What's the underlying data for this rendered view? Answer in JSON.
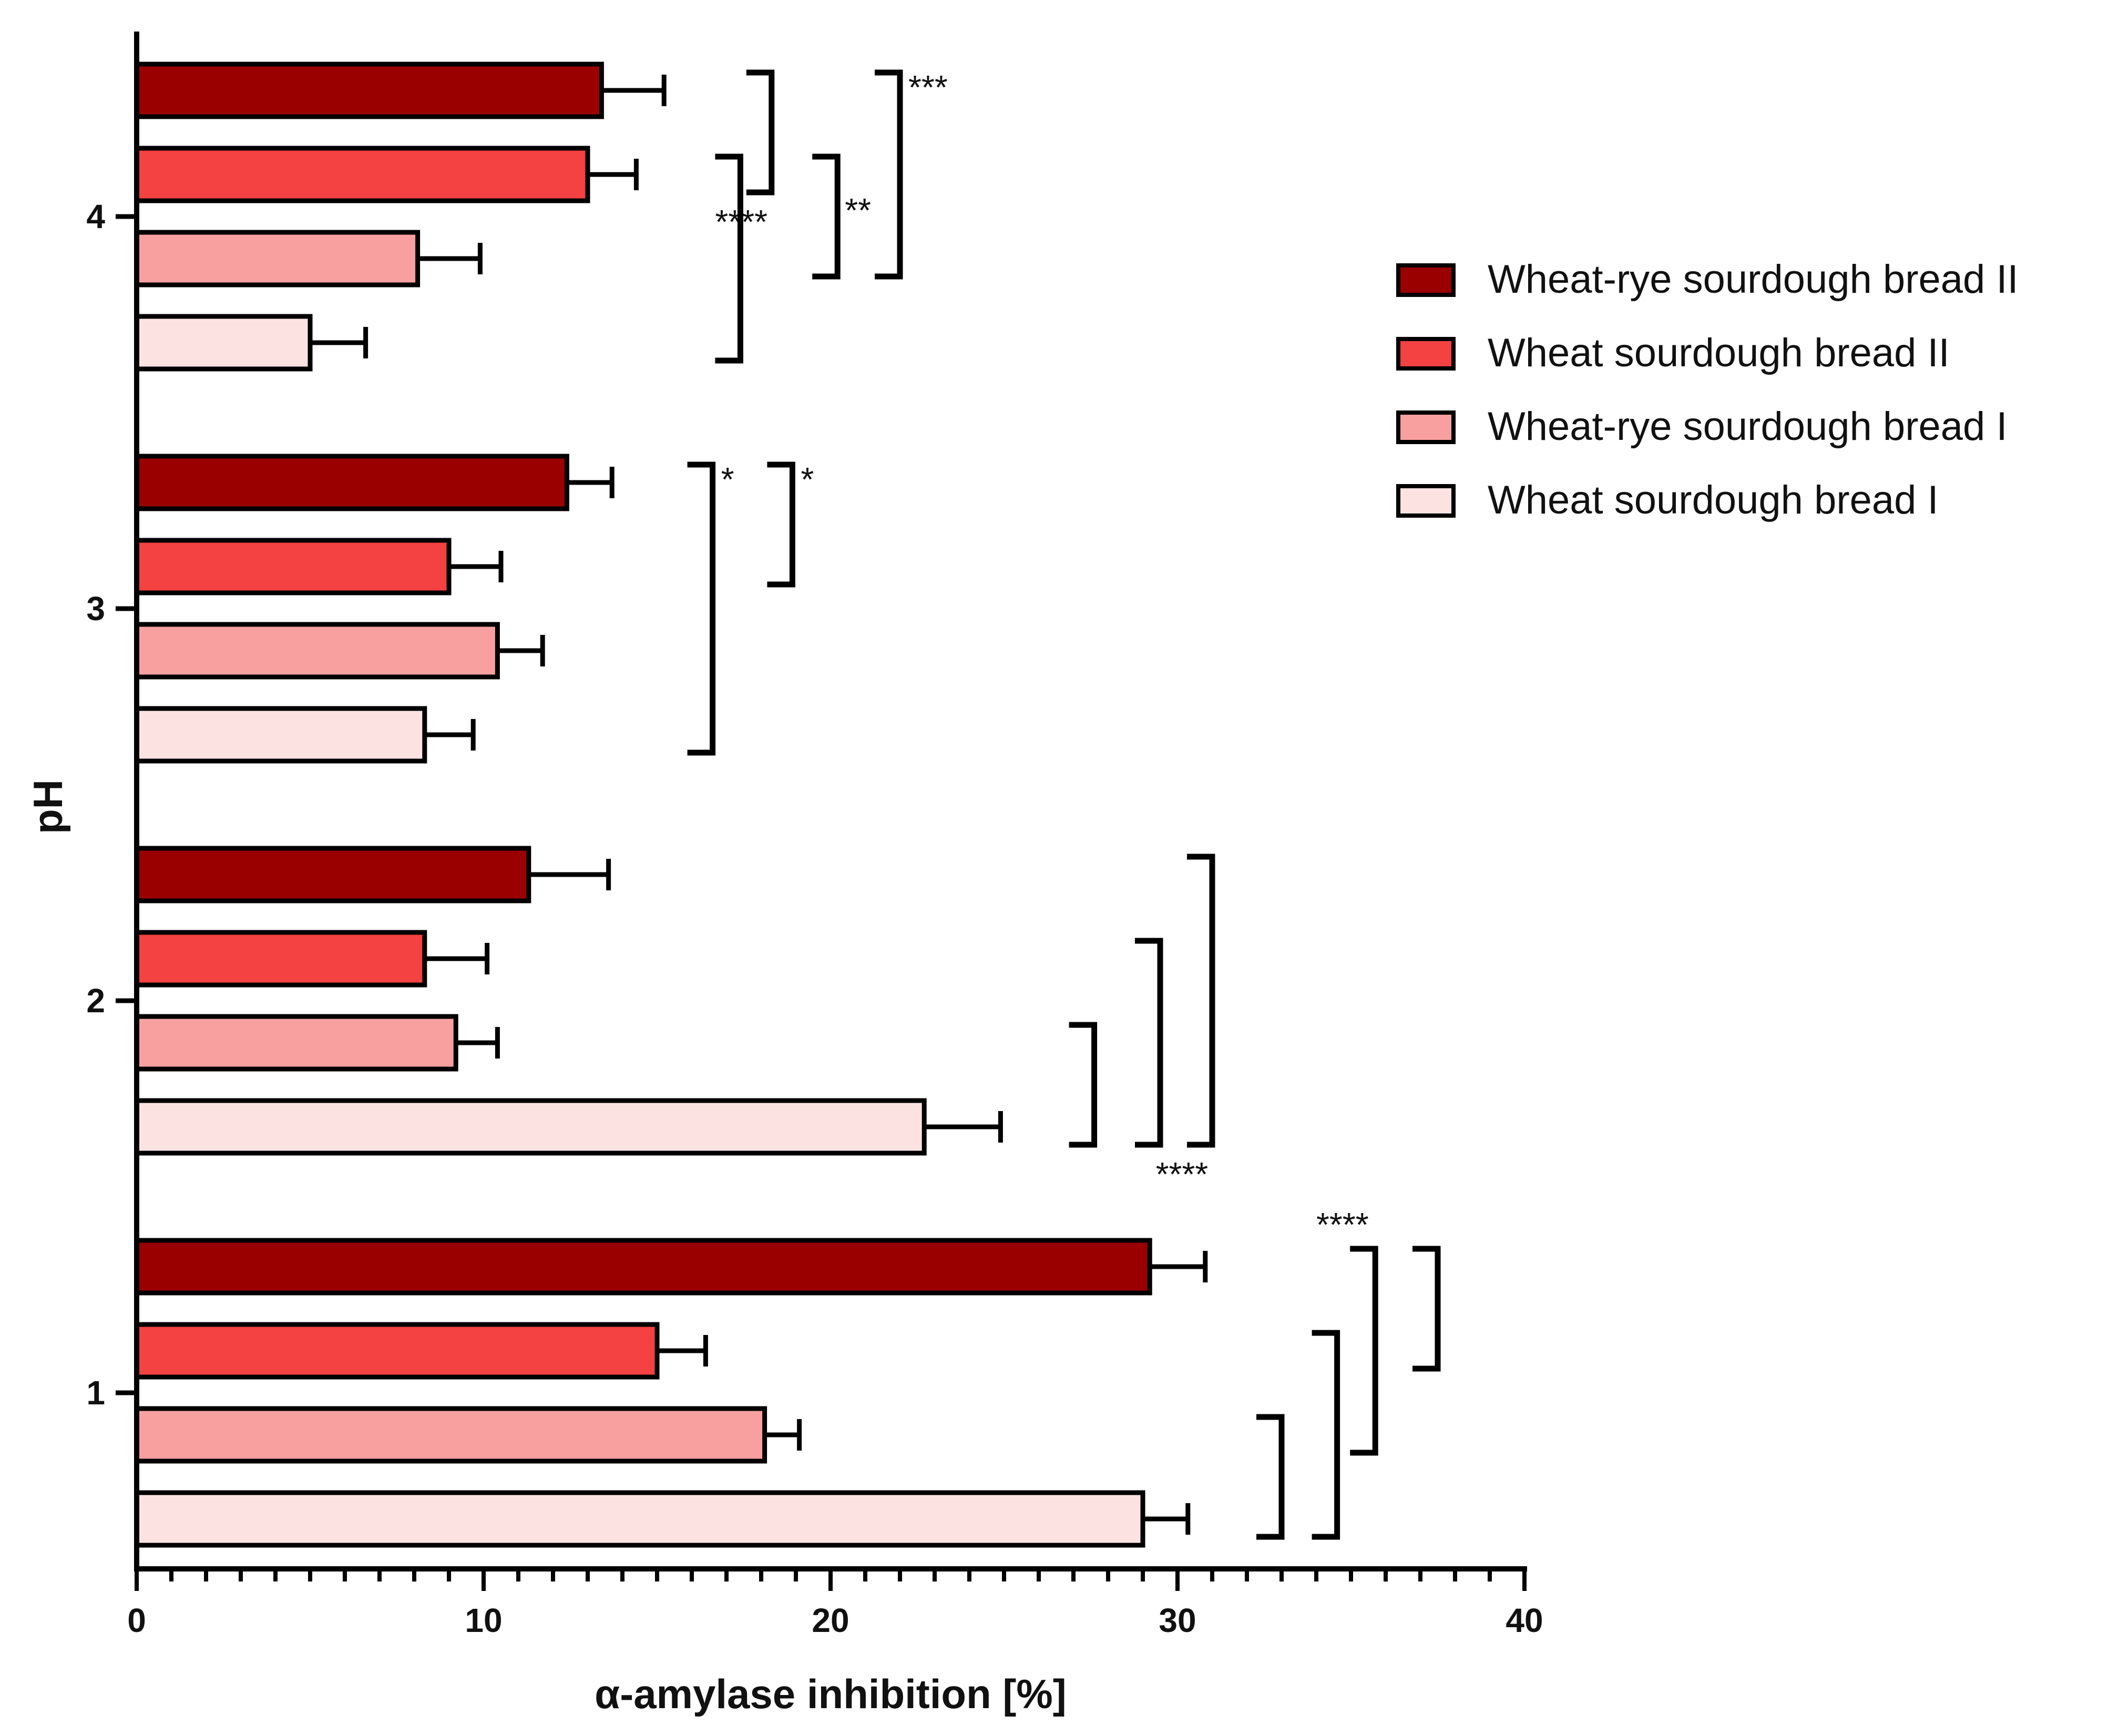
{
  "chart_data": {
    "type": "bar",
    "orientation": "horizontal",
    "xlabel": "α-amylase inhibition [%]",
    "ylabel": "pH",
    "xlim": [
      0,
      40
    ],
    "x_ticks": [
      0,
      10,
      20,
      30,
      40
    ],
    "x_minor_step": 1,
    "categories": [
      "1",
      "2",
      "3",
      "4"
    ],
    "legend_position": "right",
    "series": [
      {
        "name": "Wheat-rye sourdough bread II",
        "color": "#9b0000",
        "values": [
          29.2,
          11.3,
          12.4,
          13.4
        ],
        "errors": [
          1.6,
          2.3,
          1.3,
          1.8
        ]
      },
      {
        "name": "Wheat sourdough bread II",
        "color": "#f44141",
        "values": [
          15.0,
          8.3,
          9.0,
          13.0
        ],
        "errors": [
          1.4,
          1.8,
          1.5,
          1.4
        ]
      },
      {
        "name": "Wheat-rye sourdough bread I",
        "color": "#f8a0a0",
        "values": [
          18.1,
          9.2,
          10.4,
          8.1
        ],
        "errors": [
          1.0,
          1.2,
          1.3,
          1.8
        ]
      },
      {
        "name": "Wheat sourdough bread I",
        "color": "#fde2e2",
        "values": [
          29.0,
          22.7,
          8.3,
          5.0
        ],
        "errors": [
          1.3,
          2.2,
          1.4,
          1.6
        ]
      }
    ],
    "significance": [
      {
        "category": "4",
        "from_series": 0,
        "to_series": 1,
        "x": 18.3,
        "label": "****",
        "label_side": "bottom"
      },
      {
        "category": "4",
        "from_series": 1,
        "to_series": 3,
        "x": 17.4,
        "label": "",
        "label_side": "bottom"
      },
      {
        "category": "4",
        "from_series": 0,
        "to_series": 2,
        "x": 22.0,
        "label": "***",
        "label_side": "top"
      },
      {
        "category": "4",
        "from_series": 1,
        "to_series": 2,
        "x": 20.2,
        "label": "**",
        "label_side": "right"
      },
      {
        "category": "3",
        "from_series": 0,
        "to_series": 3,
        "x": 16.6,
        "label": "*",
        "label_side": "top"
      },
      {
        "category": "3",
        "from_series": 0,
        "to_series": 1,
        "x": 18.9,
        "label": "*",
        "label_side": "top"
      },
      {
        "category": "2",
        "from_series": 0,
        "to_series": 3,
        "x": 31.0,
        "label": "****",
        "label_side": "bottom"
      },
      {
        "category": "2",
        "from_series": 1,
        "to_series": 3,
        "x": 29.5,
        "label": "",
        "label_side": "bottom"
      },
      {
        "category": "2",
        "from_series": 2,
        "to_series": 3,
        "x": 27.6,
        "label": "",
        "label_side": "bottom"
      },
      {
        "category": "1",
        "from_series": 0,
        "to_series": 2,
        "x": 35.7,
        "label": "****",
        "label_side": "top"
      },
      {
        "category": "1",
        "from_series": 0,
        "to_series": 1,
        "x": 37.5,
        "label": "",
        "label_side": "top"
      },
      {
        "category": "1",
        "from_series": 1,
        "to_series": 3,
        "x": 34.6,
        "label": "",
        "label_side": "top"
      },
      {
        "category": "1",
        "from_series": 2,
        "to_series": 3,
        "x": 33.0,
        "label": "",
        "label_side": "top"
      }
    ]
  }
}
